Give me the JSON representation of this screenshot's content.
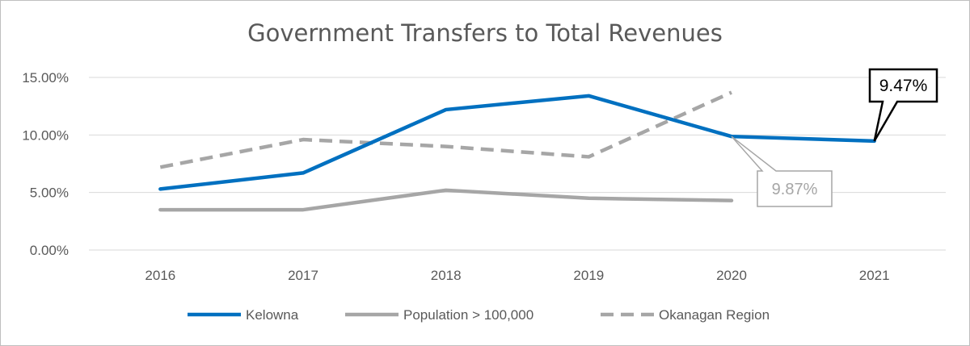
{
  "chart_data": {
    "type": "line",
    "title": "Government Transfers to Total Revenues",
    "categories": [
      "2016",
      "2017",
      "2018",
      "2019",
      "2020",
      "2021"
    ],
    "y_ticks": [
      "0.00%",
      "5.00%",
      "10.00%",
      "15.00%"
    ],
    "ylim": [
      0,
      0.15
    ],
    "grid": true,
    "legend_position": "bottom",
    "series": [
      {
        "name": "Kelowna",
        "values": [
          0.053,
          0.067,
          0.122,
          0.134,
          0.0987,
          0.0947
        ],
        "color": "#0070c0",
        "style": "solid"
      },
      {
        "name": "Population > 100,000",
        "values": [
          0.035,
          0.035,
          0.052,
          0.045,
          0.043,
          null
        ],
        "color": "#a6a6a6",
        "style": "solid"
      },
      {
        "name": "Okanagan Region",
        "values": [
          0.072,
          0.096,
          0.09,
          0.081,
          0.137,
          null
        ],
        "color": "#a6a6a6",
        "style": "dashed"
      }
    ],
    "annotations": [
      {
        "text": "9.47%",
        "series": "Kelowna",
        "category": "2021",
        "color": "#000000"
      },
      {
        "text": "9.87%",
        "series": "Kelowna",
        "category": "2020",
        "color": "#a6a6a6"
      }
    ]
  }
}
